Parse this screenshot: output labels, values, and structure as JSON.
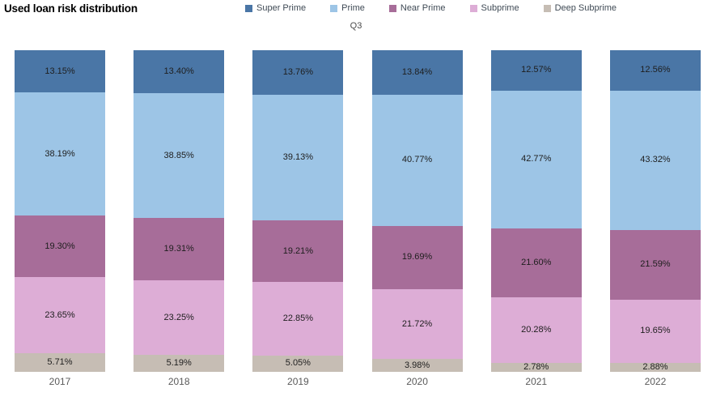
{
  "title": "Used loan risk distribution",
  "subtitle": "Q3",
  "colors": {
    "super_prime": "#4a76a6",
    "prime": "#9dc5e6",
    "near_prime": "#a76d99",
    "subprime": "#ddadd6",
    "deep_subprime": "#c6bdb4",
    "data_label_text": "#1e1e1e",
    "axis_text": "#5a5a5a",
    "legend_text": "#3f4a55"
  },
  "legend": {
    "position": "top",
    "items": [
      {
        "label": "Super Prime",
        "color": "#4a76a6"
      },
      {
        "label": "Prime",
        "color": "#9dc5e6"
      },
      {
        "label": "Near Prime",
        "color": "#a76d99"
      },
      {
        "label": "Subprime",
        "color": "#ddadd6"
      },
      {
        "label": "Deep Subprime",
        "color": "#c6bdb4"
      }
    ]
  },
  "chart_data": {
    "type": "bar",
    "stacked": true,
    "orientation": "vertical",
    "normalized_to_100_percent": true,
    "title": "Used loan risk distribution",
    "subtitle": "Q3",
    "xlabel": "",
    "ylabel": "",
    "ylim": [
      0,
      100
    ],
    "grid": false,
    "legend_position": "top",
    "value_suffix": "%",
    "categories": [
      "2017",
      "2018",
      "2019",
      "2020",
      "2021",
      "2022"
    ],
    "series": [
      {
        "name": "Super Prime",
        "color": "#4a76a6",
        "values": [
          13.15,
          13.4,
          13.76,
          13.84,
          12.57,
          12.56
        ]
      },
      {
        "name": "Prime",
        "color": "#9dc5e6",
        "values": [
          38.19,
          38.85,
          39.13,
          40.77,
          42.77,
          43.32
        ]
      },
      {
        "name": "Near Prime",
        "color": "#a76d99",
        "values": [
          19.3,
          19.31,
          19.21,
          19.69,
          21.6,
          21.59
        ]
      },
      {
        "name": "Subprime",
        "color": "#ddadd6",
        "values": [
          23.65,
          23.25,
          22.85,
          21.72,
          20.28,
          19.65
        ]
      },
      {
        "name": "Deep Subprime",
        "color": "#c6bdb4",
        "values": [
          5.71,
          5.19,
          5.05,
          3.98,
          2.78,
          2.88
        ]
      }
    ]
  }
}
